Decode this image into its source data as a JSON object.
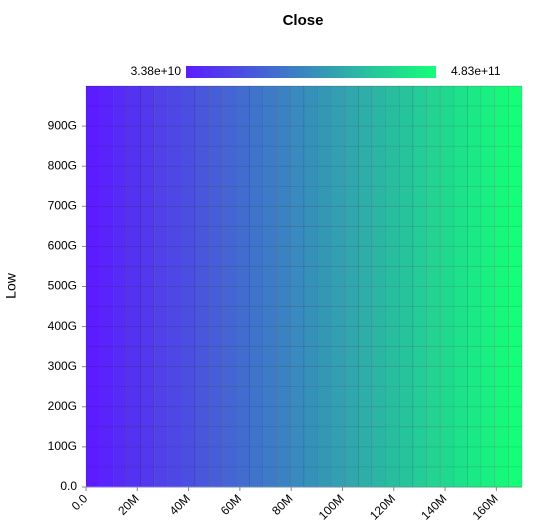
{
  "chart_data": {
    "type": "heatmap",
    "title": "Close",
    "y_label": "Low",
    "xbins": [
      0,
      5312500,
      10625000,
      15937500,
      21250000,
      26562500,
      31875000,
      37187500,
      42500000,
      47812500,
      53125000,
      58437500,
      63750000,
      69062500,
      74375000,
      79687500,
      85000000,
      90312500,
      95625000,
      100937500,
      106250000,
      111562500,
      116875000,
      122187500,
      127500000,
      132812500,
      138125000,
      143437500,
      148750000,
      154062500,
      159375000,
      164687500,
      170000000
    ],
    "ybins": [
      0,
      50000000000,
      100000000000,
      150000000000,
      200000000000,
      250000000000,
      300000000000,
      350000000000,
      400000000000,
      450000000000,
      500000000000,
      550000000000,
      600000000000,
      650000000000,
      700000000000,
      750000000000,
      800000000000,
      850000000000,
      900000000000,
      950000000000,
      1000000000000
    ],
    "values": [
      33800000000.0,
      48300000000.0,
      62700000000.0,
      77200000000.0,
      91800000000.0,
      106200000000.0,
      120700000000.0,
      135200000000.0,
      149700000000.0,
      164200000000.0,
      178700000000.0,
      193100000000.0,
      207600000000.0,
      222100000000.0,
      236600000000.0,
      251100000000.0,
      265600000000.0,
      280000000000.0,
      294500000000.0,
      309000000000.0,
      323500000000.0,
      338000000000.0,
      352400000000.0,
      366900000000.0,
      381400000000.0,
      395900000000.0,
      410400000000.0,
      424900000000.0,
      439300000000.0,
      453800000000.0,
      468300000000.0,
      483000000000.0
    ],
    "xlim": [
      0,
      170000000
    ],
    "ylim": [
      0,
      1000000000000
    ],
    "xticks": [
      {
        "value": 0,
        "label": "0.0"
      },
      {
        "value": 20000000,
        "label": "20M"
      },
      {
        "value": 40000000,
        "label": "40M"
      },
      {
        "value": 60000000,
        "label": "60M"
      },
      {
        "value": 80000000,
        "label": "80M"
      },
      {
        "value": 100000000,
        "label": "100M"
      },
      {
        "value": 120000000,
        "label": "120M"
      },
      {
        "value": 140000000,
        "label": "140M"
      },
      {
        "value": 160000000,
        "label": "160M"
      }
    ],
    "yticks": [
      {
        "value": 0,
        "label": "0.0"
      },
      {
        "value": 100000000000,
        "label": "100G"
      },
      {
        "value": 200000000000,
        "label": "200G"
      },
      {
        "value": 300000000000,
        "label": "300G"
      },
      {
        "value": 400000000000,
        "label": "400G"
      },
      {
        "value": 500000000000,
        "label": "500G"
      },
      {
        "value": 600000000000,
        "label": "600G"
      },
      {
        "value": 700000000000,
        "label": "700G"
      },
      {
        "value": 800000000000,
        "label": "800G"
      },
      {
        "value": 900000000000,
        "label": "900G"
      }
    ],
    "colorbar": {
      "min": {
        "value": 33800000000,
        "label": "3.38e+10"
      },
      "max": {
        "value": 483000000000,
        "label": "4.83e+11"
      },
      "colors": [
        "#5b1cff",
        "#14ff78"
      ]
    }
  }
}
